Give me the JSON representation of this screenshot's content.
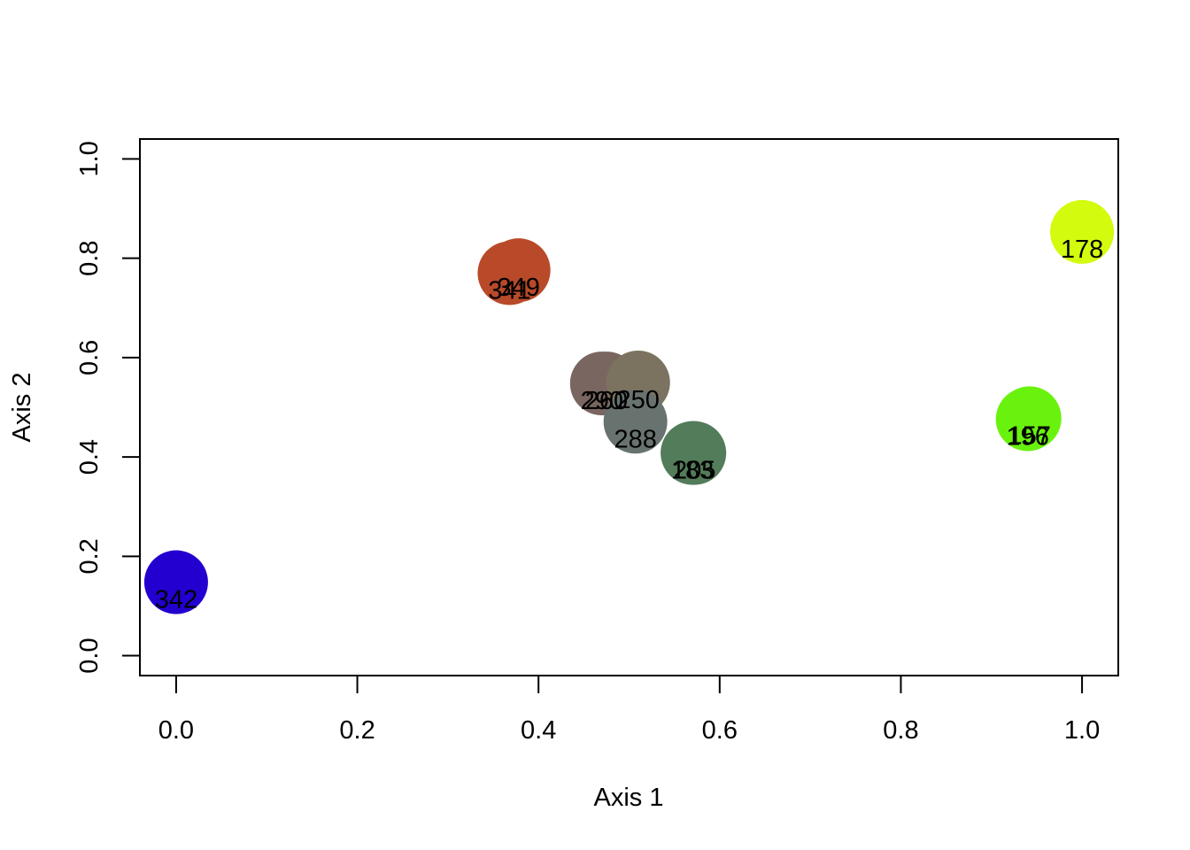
{
  "chart_data": {
    "type": "scatter",
    "xlabel": "Axis 1",
    "ylabel": "Axis 2",
    "xlim": [
      -0.04,
      1.04
    ],
    "ylim": [
      -0.04,
      1.04
    ],
    "x_ticks": [
      "0.0",
      "0.2",
      "0.4",
      "0.6",
      "0.8",
      "1.0"
    ],
    "y_ticks": [
      "0.0",
      "0.2",
      "0.4",
      "0.6",
      "0.8",
      "1.0"
    ],
    "grid": false,
    "points": [
      {
        "x": 0.0,
        "y": 0.148,
        "label": "342",
        "color": "#2300CF"
      },
      {
        "x": 0.368,
        "y": 0.77,
        "label": "341",
        "color": "#B84A2A"
      },
      {
        "x": 0.378,
        "y": 0.776,
        "label": "349",
        "color": "#B84A2A"
      },
      {
        "x": 0.47,
        "y": 0.548,
        "label": "290",
        "color": "#7A6660"
      },
      {
        "x": 0.475,
        "y": 0.548,
        "label": "260",
        "color": "#7A6660"
      },
      {
        "x": 0.51,
        "y": 0.55,
        "label": "250",
        "color": "#7B7360"
      },
      {
        "x": 0.507,
        "y": 0.471,
        "label": "288",
        "color": "#687370"
      },
      {
        "x": 0.57,
        "y": 0.408,
        "label": "183",
        "color": "#537C5A"
      },
      {
        "x": 0.572,
        "y": 0.408,
        "label": "205",
        "color": "#537C5A"
      },
      {
        "x": 0.94,
        "y": 0.476,
        "label": "196",
        "color": "#6AF20F"
      },
      {
        "x": 0.942,
        "y": 0.478,
        "label": "157",
        "color": "#6AF20F"
      },
      {
        "x": 1.0,
        "y": 0.853,
        "label": "178",
        "color": "#D2FB0E"
      }
    ]
  }
}
